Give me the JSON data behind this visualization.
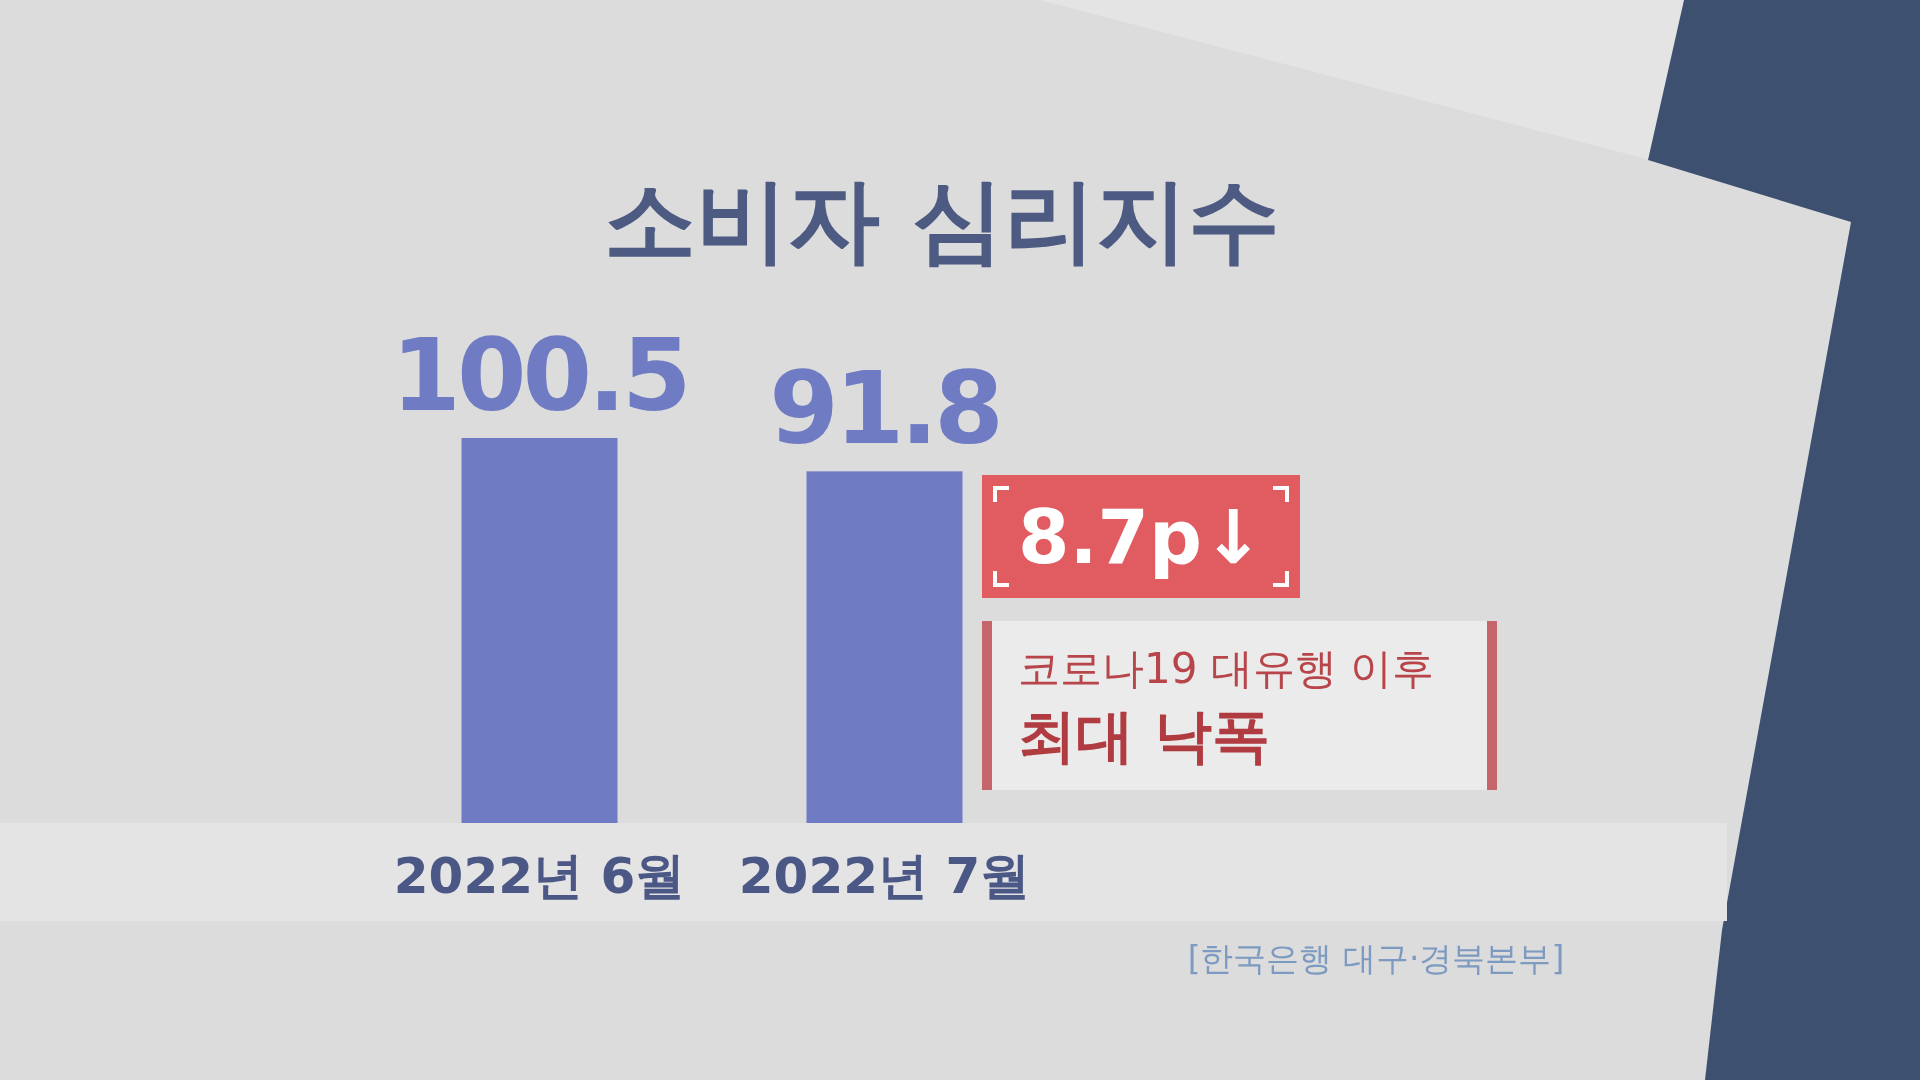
{
  "chart_data": {
    "type": "bar",
    "title": "소비자 심리지수",
    "categories": [
      "2022년 6월",
      "2022년 7월"
    ],
    "values": [
      100.5,
      91.8
    ],
    "color": "#6f7cc4",
    "data_labels": true,
    "annotations": [
      "8.7p↓",
      "코로나19 대유행 이후",
      "최대 낙폭",
      "[한국은행 대구·경북본부]"
    ]
  }
}
